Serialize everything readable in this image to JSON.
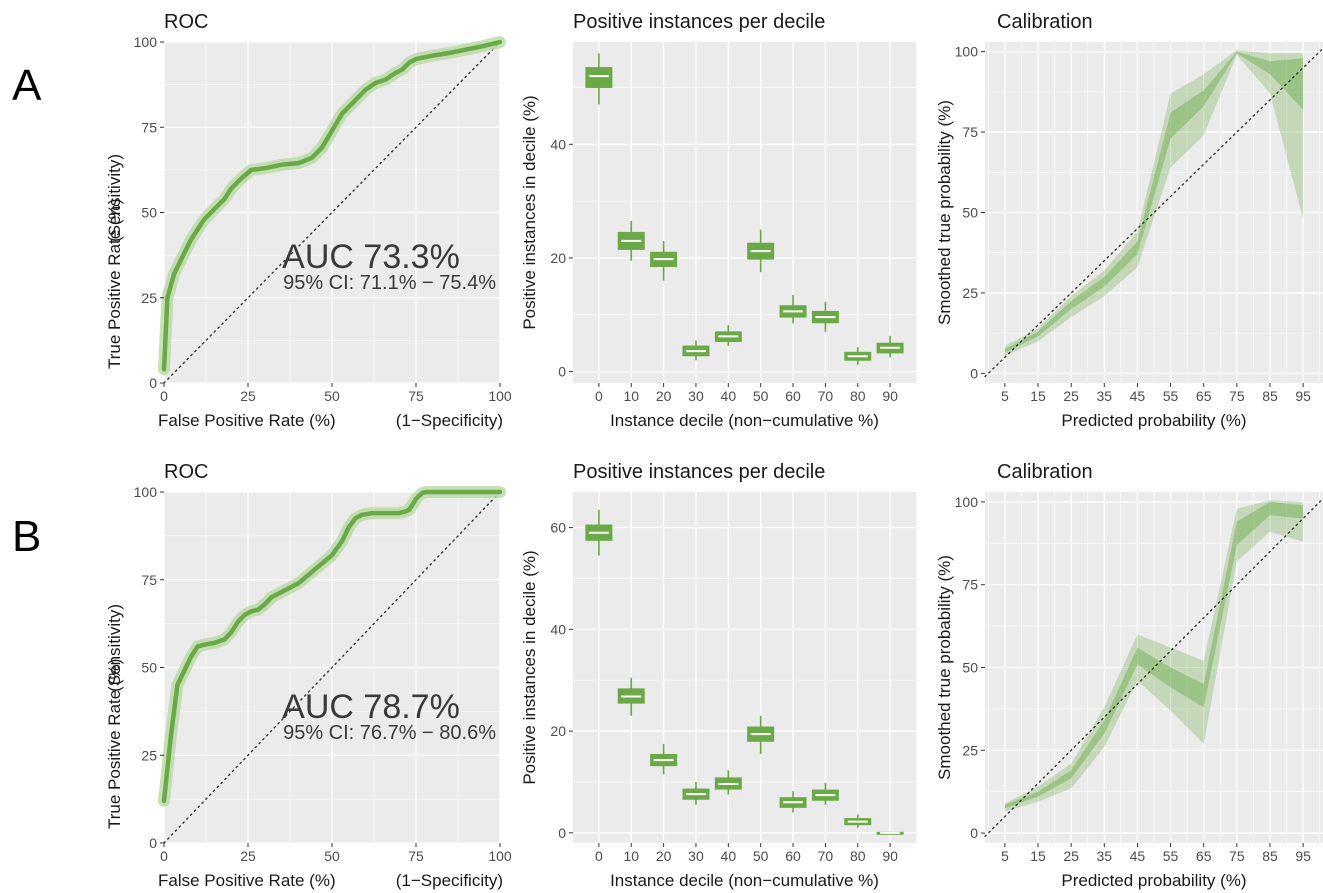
{
  "colors": {
    "panel_bg": "#ebebeb",
    "grid": "#ffffff",
    "series": "#6aaa46",
    "series_light": "#b9d9a4",
    "box_fill": "#6aaa46",
    "median": "#ffffff",
    "diagonal": "#333333"
  },
  "rows": [
    {
      "label": "A",
      "roc": {
        "title": "ROC",
        "xlabel": "False Positive Rate (%)",
        "xlabel_right": "(1−Specificity)",
        "ylabel": "True Positive Rate (%)",
        "ylabel_right": "(Sensitivity)",
        "auc_text": "AUC 73.3%",
        "ci_text": "95% CI: 71.1% − 75.4%"
      },
      "deciles": {
        "title": "Positive instances per decile",
        "xlabel": "Instance decile (non−cumulative %)",
        "ylabel": "Positive instances in decile (%)"
      },
      "calibration": {
        "title": "Calibration",
        "xlabel": "Predicted probability (%)",
        "ylabel": "Smoothed true probability (%)"
      }
    },
    {
      "label": "B",
      "roc": {
        "title": "ROC",
        "xlabel": "False Positive Rate (%)",
        "xlabel_right": "(1−Specificity)",
        "ylabel": "True Positive Rate (%)",
        "ylabel_right": "(Sensitivity)",
        "auc_text": "AUC 78.7%",
        "ci_text": "95% CI: 76.7% − 80.6%"
      },
      "deciles": {
        "title": "Positive instances per decile",
        "xlabel": "Instance decile (non−cumulative %)",
        "ylabel": "Positive instances in decile (%)"
      },
      "calibration": {
        "title": "Calibration",
        "xlabel": "Predicted probability (%)",
        "ylabel": "Smoothed true probability (%)"
      }
    }
  ],
  "chart_data": [
    {
      "type": "line",
      "panel": "A-roc",
      "title": "ROC",
      "xlabel": "False Positive Rate (%)",
      "ylabel": "True Positive Rate (%)",
      "xlim": [
        0,
        100
      ],
      "ylim": [
        0,
        100
      ],
      "xticks": [
        0,
        25,
        50,
        75,
        100
      ],
      "yticks": [
        0,
        25,
        50,
        75,
        100
      ],
      "grid": true,
      "series": [
        {
          "name": "ROC",
          "x": [
            0,
            1,
            3,
            5,
            8,
            10,
            12,
            15,
            18,
            20,
            23,
            26,
            30,
            35,
            40,
            44,
            47,
            50,
            53,
            56,
            60,
            63,
            66,
            69,
            71,
            72,
            73,
            75,
            80,
            85,
            90,
            95,
            100
          ],
          "y": [
            4,
            25,
            32,
            36,
            42,
            45,
            48,
            51,
            54,
            57,
            60,
            62.5,
            63,
            64,
            64.5,
            66,
            69,
            74,
            79,
            82,
            86,
            88,
            89,
            91,
            92,
            93,
            94,
            95,
            96,
            96.8,
            97.8,
            98.8,
            100
          ]
        }
      ],
      "annotations": [
        "AUC 73.3%",
        "95% CI: 71.1% − 75.4%"
      ]
    },
    {
      "type": "box",
      "panel": "A-deciles",
      "title": "Positive instances per decile",
      "xlabel": "Instance decile (non−cumulative %)",
      "ylabel": "Positive instances in decile (%)",
      "categories": [
        "0",
        "10",
        "20",
        "30",
        "40",
        "50",
        "60",
        "70",
        "80",
        "90"
      ],
      "ylim": [
        -2,
        58
      ],
      "yticks": [
        0,
        20,
        40
      ],
      "boxes": [
        {
          "low": 47,
          "q1": 50,
          "median": 52,
          "q3": 53.5,
          "high": 56
        },
        {
          "low": 19.5,
          "q1": 21.5,
          "median": 23,
          "q3": 24.5,
          "high": 26.5
        },
        {
          "low": 16,
          "q1": 18.5,
          "median": 19.8,
          "q3": 21,
          "high": 23
        },
        {
          "low": 2,
          "q1": 2.8,
          "median": 3.6,
          "q3": 4.5,
          "high": 5.5
        },
        {
          "low": 4.5,
          "q1": 5.3,
          "median": 6.2,
          "q3": 7,
          "high": 8.2
        },
        {
          "low": 17.5,
          "q1": 19.8,
          "median": 21.2,
          "q3": 22.6,
          "high": 25
        },
        {
          "low": 8.5,
          "q1": 9.6,
          "median": 10.6,
          "q3": 11.6,
          "high": 13.5
        },
        {
          "low": 7,
          "q1": 8.6,
          "median": 9.6,
          "q3": 10.6,
          "high": 12.3
        },
        {
          "low": 1.2,
          "q1": 2,
          "median": 2.7,
          "q3": 3.4,
          "high": 4.3
        },
        {
          "low": 2.5,
          "q1": 3.3,
          "median": 4.2,
          "q3": 5,
          "high": 6.3
        }
      ]
    },
    {
      "type": "area",
      "panel": "A-calibration",
      "title": "Calibration",
      "xlabel": "Predicted probability (%)",
      "ylabel": "Smoothed true probability (%)",
      "xlim": [
        -1,
        101
      ],
      "ylim": [
        -3,
        103
      ],
      "xticks": [
        5,
        15,
        25,
        35,
        45,
        55,
        65,
        75,
        85,
        95
      ],
      "yticks": [
        0,
        25,
        50,
        75,
        100
      ],
      "grid": true,
      "x": [
        5,
        15,
        25,
        35,
        45,
        55,
        65,
        75,
        85,
        95
      ],
      "outer_band": {
        "lower": [
          5.5,
          10,
          17.5,
          24,
          33,
          64,
          74,
          99,
          87,
          48
        ],
        "upper": [
          8.5,
          14,
          24,
          32,
          44,
          87,
          93,
          100.5,
          99.5,
          99.5
        ]
      },
      "inner_band": {
        "lower": [
          6.5,
          11.5,
          20,
          27,
          37,
          73,
          83,
          99.5,
          93,
          82
        ],
        "upper": [
          7.5,
          13,
          22.5,
          30,
          41,
          81,
          88,
          100,
          97,
          98
        ]
      },
      "reference_line": "y = x"
    },
    {
      "type": "line",
      "panel": "B-roc",
      "title": "ROC",
      "xlabel": "False Positive Rate (%)",
      "ylabel": "True Positive Rate (%)",
      "xlim": [
        0,
        100
      ],
      "ylim": [
        0,
        100
      ],
      "xticks": [
        0,
        25,
        50,
        75,
        100
      ],
      "yticks": [
        0,
        25,
        50,
        75,
        100
      ],
      "grid": true,
      "series": [
        {
          "name": "ROC",
          "x": [
            0,
            2,
            4,
            6,
            8,
            10,
            12,
            15,
            18,
            20,
            22,
            24,
            26,
            28,
            30,
            32,
            35,
            40,
            45,
            50,
            53,
            55,
            57,
            59,
            62,
            65,
            70,
            72,
            73,
            75,
            76,
            77,
            78,
            80,
            85,
            90,
            100
          ],
          "y": [
            12,
            30,
            45,
            49,
            53,
            56,
            56.5,
            57,
            58,
            60,
            63,
            65,
            66,
            66.5,
            68,
            70,
            71.5,
            74,
            78,
            82,
            86,
            90,
            92.5,
            93.5,
            94,
            94,
            94,
            94.5,
            95,
            98,
            99,
            99.8,
            100,
            100,
            100,
            100,
            100
          ]
        }
      ],
      "annotations": [
        "AUC 78.7%",
        "95% CI: 76.7% − 80.6%"
      ]
    },
    {
      "type": "box",
      "panel": "B-deciles",
      "title": "Positive instances per decile",
      "xlabel": "Instance decile (non−cumulative %)",
      "ylabel": "Positive instances in decile (%)",
      "categories": [
        "0",
        "10",
        "20",
        "30",
        "40",
        "50",
        "60",
        "70",
        "80",
        "90"
      ],
      "ylim": [
        -2,
        67
      ],
      "yticks": [
        0,
        20,
        40,
        60
      ],
      "boxes": [
        {
          "low": 54.5,
          "q1": 57.5,
          "median": 59,
          "q3": 60.5,
          "high": 63.5
        },
        {
          "low": 23,
          "q1": 25.5,
          "median": 26.8,
          "q3": 28.3,
          "high": 30.5
        },
        {
          "low": 11.5,
          "q1": 13.2,
          "median": 14.3,
          "q3": 15.4,
          "high": 17.5
        },
        {
          "low": 5.5,
          "q1": 6.6,
          "median": 7.6,
          "q3": 8.6,
          "high": 10
        },
        {
          "low": 7.5,
          "q1": 8.6,
          "median": 9.6,
          "q3": 10.8,
          "high": 12.3
        },
        {
          "low": 15.5,
          "q1": 18,
          "median": 19.4,
          "q3": 20.8,
          "high": 23
        },
        {
          "low": 4,
          "q1": 5,
          "median": 6,
          "q3": 6.9,
          "high": 8.2
        },
        {
          "low": 5.5,
          "q1": 6.4,
          "median": 7.4,
          "q3": 8.4,
          "high": 9.8
        },
        {
          "low": 1,
          "q1": 1.6,
          "median": 2.2,
          "q3": 2.8,
          "high": 3.6
        },
        {
          "low": -0.2,
          "q1": -0.1,
          "median": 0,
          "q3": 0.1,
          "high": 0.2
        }
      ]
    },
    {
      "type": "area",
      "panel": "B-calibration",
      "title": "Calibration",
      "xlabel": "Predicted probability (%)",
      "ylabel": "Smoothed true probability (%)",
      "xlim": [
        -1,
        101
      ],
      "ylim": [
        -3,
        103
      ],
      "xticks": [
        5,
        15,
        25,
        35,
        45,
        55,
        65,
        75,
        85,
        95
      ],
      "yticks": [
        0,
        25,
        50,
        75,
        100
      ],
      "grid": true,
      "x": [
        5,
        15,
        25,
        35,
        45,
        55,
        65,
        75,
        85,
        95
      ],
      "outer_band": {
        "lower": [
          6.5,
          9.5,
          13.5,
          26,
          46,
          37,
          27,
          82,
          91,
          88
        ],
        "upper": [
          9,
          14,
          21,
          38,
          60,
          56,
          52,
          98,
          100.5,
          100
        ]
      },
      "inner_band": {
        "lower": [
          7.5,
          11,
          16.5,
          30,
          51,
          44,
          38,
          87,
          96,
          95
        ],
        "upper": [
          8.5,
          12.5,
          19,
          34,
          56,
          50,
          45,
          94,
          100,
          99
        ]
      },
      "reference_line": "y = x"
    }
  ]
}
